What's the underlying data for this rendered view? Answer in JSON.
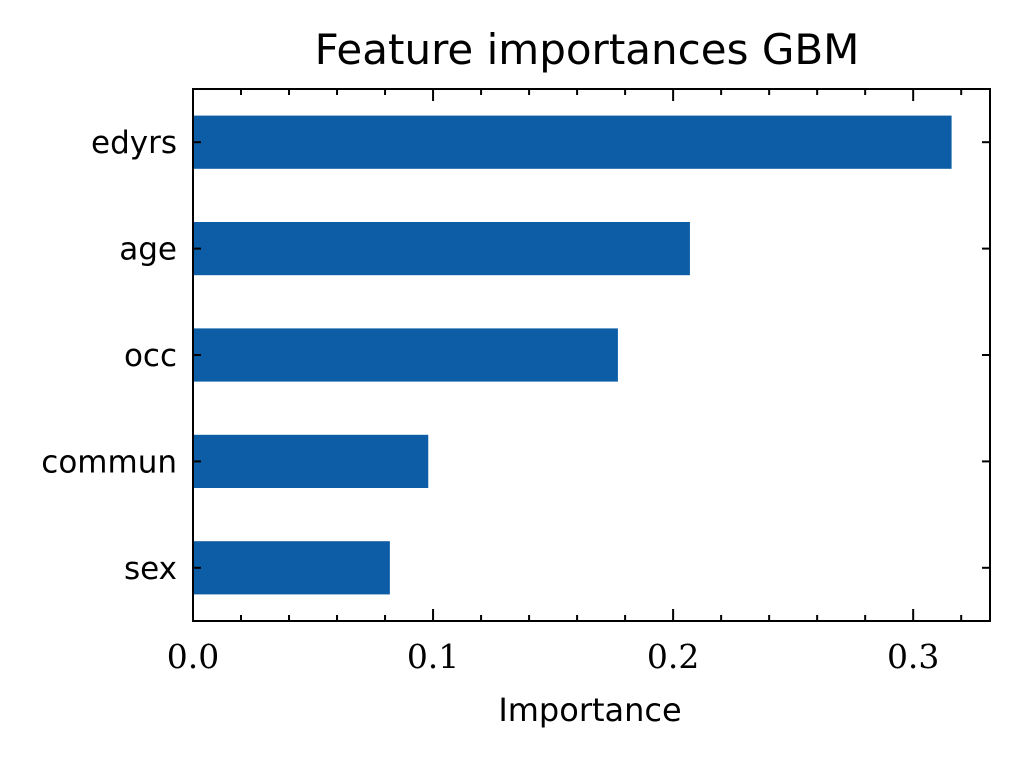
{
  "chart_data": {
    "type": "bar",
    "orientation": "horizontal",
    "title": "Feature importances GBM",
    "xlabel": "Importance",
    "ylabel": "",
    "categories": [
      "edyrs",
      "age",
      "occ",
      "commun",
      "sex"
    ],
    "values": [
      0.316,
      0.207,
      0.177,
      0.098,
      0.082
    ],
    "xlim": [
      0.0,
      0.332
    ],
    "xticks": [
      0.0,
      0.1,
      0.2,
      0.3
    ],
    "xtick_labels": [
      "0.0",
      "0.1",
      "0.2",
      "0.3"
    ],
    "grid": false,
    "bar_color": "#0c5da5"
  }
}
